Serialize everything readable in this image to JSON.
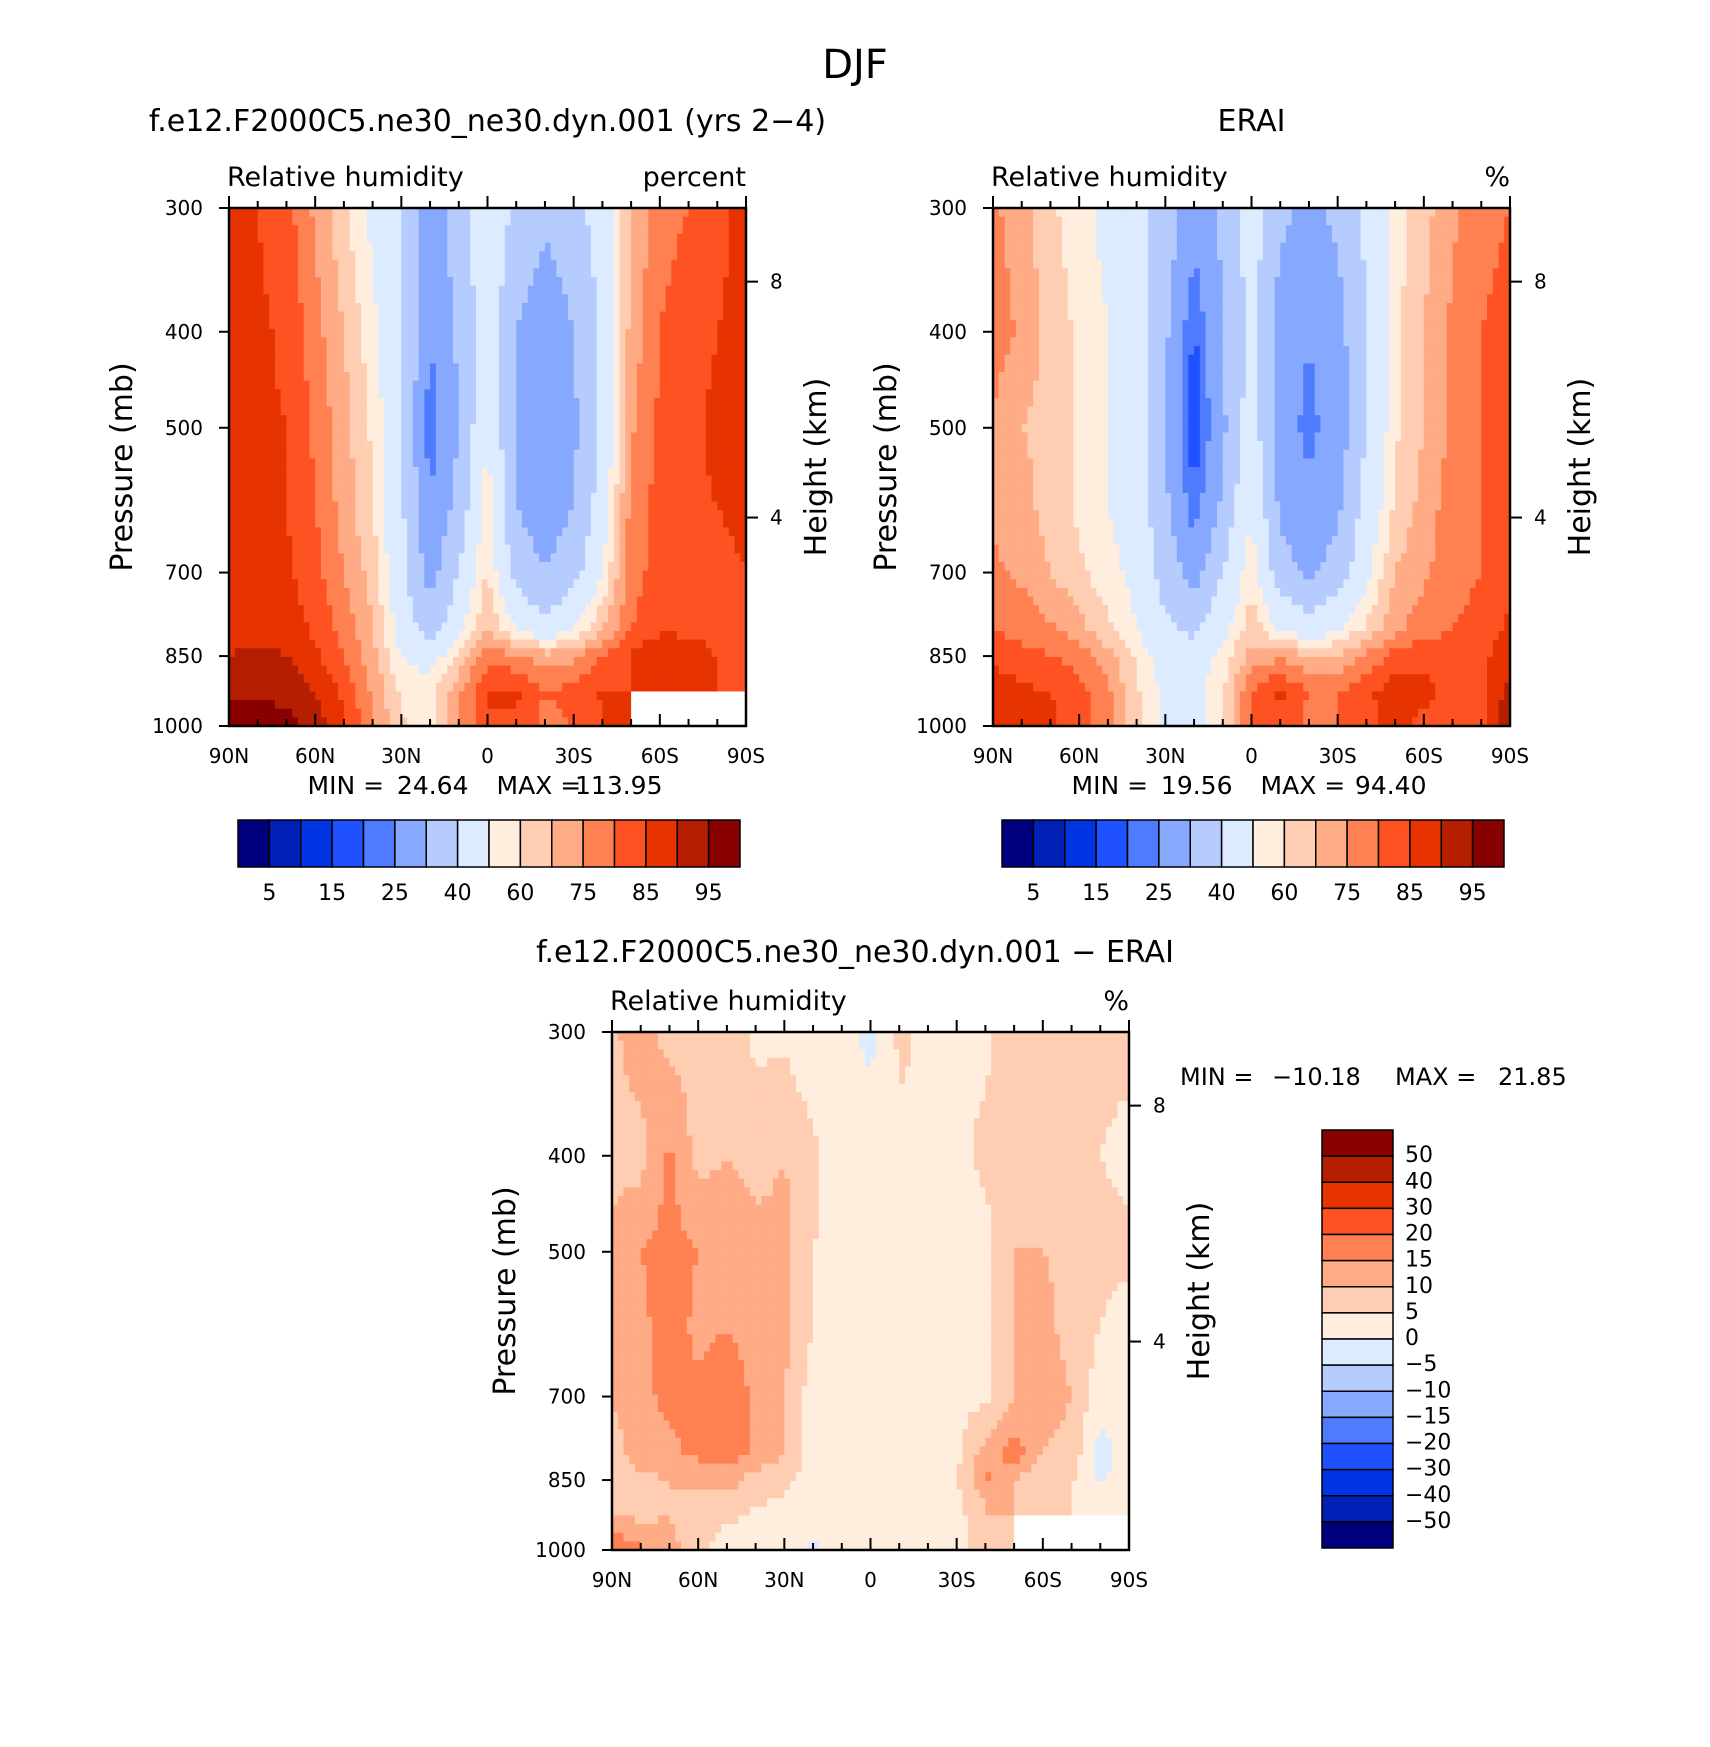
{
  "page": {
    "title": "DJF"
  },
  "colors": {
    "model_obs_scale": [
      "#00007f",
      "#0020b6",
      "#0035e3",
      "#1f51ff",
      "#4f7cff",
      "#86a8ff",
      "#b6ccff",
      "#dcebff",
      "#ffeedd",
      "#ffcdb2",
      "#ffab86",
      "#ff8152",
      "#ff5223",
      "#e63300",
      "#b51e00",
      "#880000"
    ],
    "diff_scale": [
      "#00007f",
      "#0020b6",
      "#0035e3",
      "#1f51ff",
      "#4f7cff",
      "#86a8ff",
      "#b6ccff",
      "#dcebff",
      "#ffeedd",
      "#ffcdb2",
      "#ffab86",
      "#ff8152",
      "#ff5223",
      "#e63300",
      "#b51e00",
      "#880000"
    ]
  },
  "chart_data": [
    {
      "type": "heatmap",
      "id": "model",
      "title": "f.e12.F2000C5.ne30_ne30.dyn.001 (yrs 2−4)",
      "variable": "Relative humidity",
      "units": "percent",
      "ylabel": "Pressure (mb)",
      "y2label": "Height (km)",
      "x_ticks": [
        "90N",
        "60N",
        "30N",
        "0",
        "30S",
        "60S",
        "90S"
      ],
      "y_ticks": [
        "300",
        "400",
        "500",
        "700",
        "850",
        "1000"
      ],
      "y2_ticks": [
        "8",
        "4"
      ],
      "ylim": [
        1000,
        300
      ],
      "xlim": [
        90,
        -90
      ],
      "stats": {
        "min_label": "MIN =",
        "min": "24.64",
        "max_label": "MAX =",
        "max": "113.95"
      },
      "levels": [
        "5",
        "15",
        "25",
        "40",
        "60",
        "75",
        "85",
        "95"
      ],
      "missing_region": {
        "lat": [
          -50,
          -90
        ],
        "pressure": [
          925,
          1000
        ]
      },
      "lat": [
        90,
        80,
        70,
        60,
        50,
        40,
        30,
        20,
        10,
        0,
        -10,
        -20,
        -30,
        -40,
        -50,
        -60,
        -70,
        -80,
        -90
      ],
      "pressure": [
        300,
        400,
        500,
        600,
        700,
        800,
        850,
        925,
        1000
      ],
      "values": [
        [
          85,
          85,
          82,
          74,
          66,
          58,
          50,
          35,
          45,
          58,
          48,
          42,
          46,
          55,
          70,
          78,
          80,
          84,
          86
        ],
        [
          86,
          86,
          84,
          77,
          70,
          62,
          52,
          30,
          42,
          56,
          40,
          34,
          40,
          52,
          72,
          80,
          83,
          85,
          86
        ],
        [
          86,
          86,
          85,
          79,
          72,
          64,
          52,
          26,
          40,
          60,
          38,
          32,
          38,
          52,
          74,
          81,
          84,
          86,
          86
        ],
        [
          86,
          86,
          85,
          80,
          73,
          65,
          52,
          30,
          44,
          64,
          40,
          34,
          40,
          55,
          77,
          82,
          84,
          85,
          86
        ],
        [
          86,
          87,
          86,
          82,
          75,
          68,
          53,
          36,
          50,
          66,
          46,
          40,
          46,
          60,
          78,
          82,
          84,
          84,
          85
        ],
        [
          88,
          89,
          88,
          84,
          78,
          70,
          57,
          45,
          58,
          70,
          60,
          54,
          60,
          70,
          80,
          84,
          84,
          84,
          85
        ],
        [
          90,
          91,
          90,
          86,
          80,
          72,
          60,
          56,
          66,
          78,
          76,
          72,
          74,
          80,
          86,
          90,
          88,
          84,
          85
        ],
        [
          94,
          94,
          93,
          90,
          84,
          74,
          64,
          64,
          74,
          86,
          86,
          80,
          82,
          86,
          null,
          null,
          null,
          null,
          null
        ],
        [
          99,
          99,
          97,
          93,
          86,
          76,
          66,
          62,
          74,
          84,
          84,
          78,
          80,
          84,
          null,
          null,
          null,
          null,
          null
        ]
      ]
    },
    {
      "type": "heatmap",
      "id": "obs",
      "title": "ERAI",
      "variable": "Relative humidity",
      "units": "%",
      "ylabel": "Pressure (mb)",
      "y2label": "Height (km)",
      "x_ticks": [
        "90N",
        "60N",
        "30N",
        "0",
        "30S",
        "60S",
        "90S"
      ],
      "y_ticks": [
        "300",
        "400",
        "500",
        "700",
        "850",
        "1000"
      ],
      "y2_ticks": [
        "8",
        "4"
      ],
      "ylim": [
        1000,
        300
      ],
      "xlim": [
        90,
        -90
      ],
      "stats": {
        "min_label": "MIN =",
        "min": "19.56",
        "max_label": "MAX =",
        "max": "94.40"
      },
      "levels": [
        "5",
        "15",
        "25",
        "40",
        "60",
        "75",
        "85",
        "95"
      ],
      "lat": [
        90,
        80,
        70,
        60,
        50,
        40,
        30,
        20,
        10,
        0,
        -10,
        -20,
        -30,
        -40,
        -50,
        -60,
        -70,
        -80,
        -90
      ],
      "pressure": [
        300,
        400,
        500,
        600,
        700,
        800,
        850,
        925,
        1000
      ],
      "values": [
        [
          76,
          72,
          66,
          62,
          58,
          54,
          46,
          34,
          42,
          56,
          42,
          38,
          42,
          52,
          62,
          68,
          74,
          78,
          80
        ],
        [
          78,
          74,
          68,
          64,
          60,
          55,
          42,
          24,
          40,
          52,
          36,
          30,
          36,
          50,
          64,
          70,
          76,
          80,
          82
        ],
        [
          74,
          70,
          68,
          64,
          60,
          55,
          40,
          20,
          38,
          56,
          34,
          28,
          34,
          50,
          64,
          70,
          76,
          80,
          82
        ],
        [
          74,
          72,
          68,
          64,
          60,
          56,
          42,
          26,
          42,
          60,
          38,
          32,
          38,
          54,
          66,
          72,
          78,
          80,
          82
        ],
        [
          76,
          74,
          70,
          66,
          62,
          58,
          46,
          36,
          50,
          64,
          44,
          38,
          44,
          58,
          70,
          74,
          78,
          80,
          84
        ],
        [
          80,
          78,
          76,
          72,
          66,
          60,
          52,
          48,
          58,
          68,
          60,
          54,
          60,
          66,
          74,
          78,
          80,
          82,
          86
        ],
        [
          84,
          82,
          80,
          78,
          72,
          64,
          56,
          56,
          62,
          72,
          74,
          70,
          70,
          76,
          82,
          84,
          82,
          84,
          88
        ],
        [
          88,
          86,
          85,
          82,
          76,
          66,
          58,
          58,
          64,
          80,
          86,
          80,
          80,
          84,
          88,
          86,
          84,
          84,
          92
        ],
        [
          90,
          88,
          86,
          82,
          76,
          66,
          58,
          56,
          64,
          80,
          84,
          78,
          80,
          84,
          86,
          84,
          82,
          84,
          94
        ]
      ]
    },
    {
      "type": "heatmap",
      "id": "diff",
      "title": "f.e12.F2000C5.ne30_ne30.dyn.001 − ERAI",
      "variable": "Relative humidity",
      "units": "%",
      "ylabel": "Pressure (mb)",
      "y2label": "Height (km)",
      "x_ticks": [
        "90N",
        "60N",
        "30N",
        "0",
        "30S",
        "60S",
        "90S"
      ],
      "y_ticks": [
        "300",
        "400",
        "500",
        "700",
        "850",
        "1000"
      ],
      "y2_ticks": [
        "8",
        "4"
      ],
      "ylim": [
        1000,
        300
      ],
      "xlim": [
        90,
        -90
      ],
      "stats": {
        "min_label": "MIN =",
        "min": "−10.18",
        "max_label": "MAX =",
        "max": "21.85"
      },
      "levels": [
        "50",
        "40",
        "30",
        "20",
        "15",
        "10",
        "5",
        "0",
        "−5",
        "−10",
        "−15",
        "−20",
        "−30",
        "−40",
        "−50"
      ],
      "missing_region": {
        "lat": [
          -50,
          -90
        ],
        "pressure": [
          925,
          1000
        ]
      },
      "lat": [
        90,
        80,
        70,
        60,
        50,
        40,
        30,
        20,
        10,
        0,
        -10,
        -20,
        -30,
        -40,
        -50,
        -60,
        -70,
        -80,
        -90
      ],
      "pressure": [
        300,
        400,
        500,
        600,
        700,
        800,
        850,
        925,
        1000
      ],
      "values": [
        [
          9,
          13,
          8,
          8,
          7,
          4,
          4,
          1,
          3,
          -2,
          6,
          4,
          4,
          4,
          8,
          10,
          6,
          6,
          6
        ],
        [
          8,
          8,
          16,
          8,
          10,
          7,
          10,
          6,
          2,
          4,
          4,
          4,
          4,
          6,
          8,
          10,
          7,
          5,
          4
        ],
        [
          12,
          15,
          17,
          15,
          15,
          13,
          12,
          5,
          4,
          2,
          4,
          4,
          4,
          3,
          10,
          10,
          8,
          6,
          6
        ],
        [
          12,
          14,
          17,
          14,
          15,
          13,
          12,
          5,
          4,
          4,
          3,
          2,
          4,
          3,
          10,
          12,
          8,
          5,
          3
        ],
        [
          10,
          14,
          16,
          16,
          18,
          14,
          10,
          2,
          4,
          3,
          2,
          2,
          3,
          4,
          10,
          13,
          10,
          2,
          1
        ],
        [
          8,
          12,
          14,
          16,
          18,
          14,
          10,
          2,
          3,
          2,
          2,
          4,
          4,
          12,
          18,
          10,
          8,
          -2,
          3
        ],
        [
          6,
          9,
          10,
          11,
          12,
          8,
          6,
          3,
          3,
          2,
          2,
          3,
          4,
          16,
          10,
          6,
          6,
          -1,
          3
        ],
        [
          10,
          9,
          10,
          8,
          6,
          4,
          3,
          2,
          2,
          2,
          2,
          3,
          4,
          6,
          null,
          null,
          null,
          null,
          null
        ],
        [
          20,
          16,
          12,
          6,
          2,
          2,
          2,
          -1,
          2,
          0,
          2,
          3,
          4,
          6,
          null,
          null,
          null,
          null,
          null
        ]
      ]
    }
  ]
}
